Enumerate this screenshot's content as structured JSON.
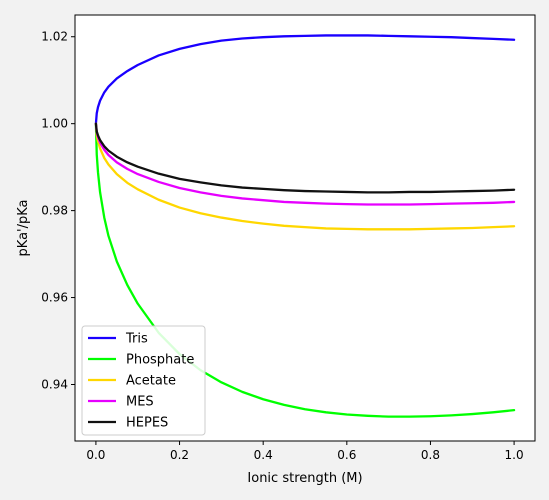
{
  "chart_data": {
    "type": "line",
    "title": "",
    "xlabel": "Ionic strength (M)",
    "ylabel": "pKa'/pKa",
    "xlim": [
      -0.05,
      1.05
    ],
    "ylim": [
      0.927,
      1.025
    ],
    "xticks": [
      0.0,
      0.2,
      0.4,
      0.6,
      0.8,
      1.0
    ],
    "xtick_labels": [
      "0.0",
      "0.2",
      "0.4",
      "0.6",
      "0.8",
      "1.0"
    ],
    "yticks": [
      0.94,
      0.96,
      0.98,
      1.0,
      1.02
    ],
    "ytick_labels": [
      "0.94",
      "0.96",
      "0.98",
      "1.00",
      "1.02"
    ],
    "grid": false,
    "legend_position": "lower-left",
    "x": [
      0,
      0.002,
      0.005,
      0.01,
      0.02,
      0.03,
      0.05,
      0.075,
      0.1,
      0.15,
      0.2,
      0.25,
      0.3,
      0.35,
      0.4,
      0.45,
      0.5,
      0.55,
      0.6,
      0.65,
      0.7,
      0.75,
      0.8,
      0.85,
      0.9,
      0.95,
      1.0
    ],
    "series": [
      {
        "name": "Tris",
        "color": "#1a00ff",
        "values": [
          1.0,
          1.0024,
          1.0038,
          1.0053,
          1.0072,
          1.0085,
          1.0104,
          1.0121,
          1.0135,
          1.0157,
          1.0172,
          1.0183,
          1.0191,
          1.0196,
          1.0199,
          1.0201,
          1.0202,
          1.0203,
          1.0203,
          1.0203,
          1.0202,
          1.0201,
          1.02,
          1.0199,
          1.0197,
          1.0195,
          1.0193
        ]
      },
      {
        "name": "Phosphate",
        "color": "#00ff00",
        "values": [
          1.0,
          0.9929,
          0.9888,
          0.9842,
          0.9784,
          0.9742,
          0.9683,
          0.9629,
          0.9586,
          0.9519,
          0.947,
          0.9433,
          0.9405,
          0.9383,
          0.9366,
          0.9353,
          0.9343,
          0.9336,
          0.9331,
          0.9328,
          0.9326,
          0.9326,
          0.9327,
          0.9329,
          0.9332,
          0.9336,
          0.9341
        ]
      },
      {
        "name": "Acetate",
        "color": "#ffd700",
        "values": [
          1.0,
          0.9974,
          0.9959,
          0.9943,
          0.9921,
          0.9906,
          0.9884,
          0.9864,
          0.9849,
          0.9825,
          0.9807,
          0.9794,
          0.9784,
          0.9776,
          0.977,
          0.9765,
          0.9762,
          0.9759,
          0.9758,
          0.9757,
          0.9757,
          0.9757,
          0.9758,
          0.9759,
          0.976,
          0.9762,
          0.9764
        ]
      },
      {
        "name": "MES",
        "color": "#e600ff",
        "values": [
          1.0,
          0.998,
          0.9969,
          0.9956,
          0.994,
          0.9928,
          0.9911,
          0.9896,
          0.9884,
          0.9866,
          0.9852,
          0.9842,
          0.9834,
          0.9828,
          0.9824,
          0.982,
          0.9818,
          0.9816,
          0.9815,
          0.9814,
          0.9814,
          0.9814,
          0.9815,
          0.9816,
          0.9817,
          0.9818,
          0.982
        ]
      },
      {
        "name": "HEPES",
        "color": "#111111",
        "values": [
          1.0,
          0.9982,
          0.9973,
          0.9962,
          0.9948,
          0.9938,
          0.9924,
          0.9911,
          0.9901,
          0.9885,
          0.9873,
          0.9865,
          0.9858,
          0.9853,
          0.985,
          0.9847,
          0.9845,
          0.9844,
          0.9843,
          0.9842,
          0.9842,
          0.9843,
          0.9843,
          0.9844,
          0.9845,
          0.9846,
          0.9848
        ]
      }
    ]
  }
}
